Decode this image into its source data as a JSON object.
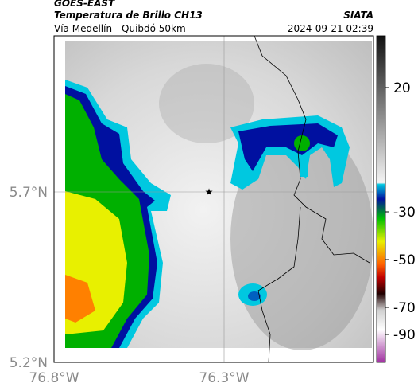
{
  "header": {
    "satellite": "GOES-EAST",
    "product": "Temperatura de Brillo CH13",
    "route": "Vía Medellín - Quibdó 50km",
    "source": "SIATA",
    "timestamp": "2024-09-21 02:39"
  },
  "axes": {
    "latitude_labels": [
      "5.7°N",
      "5.2°N"
    ],
    "longitude_labels": [
      "76.8°W",
      "76.3°W"
    ]
  },
  "colorbar": {
    "ticks": [
      20,
      -30,
      -50,
      -70,
      -90
    ]
  }
}
